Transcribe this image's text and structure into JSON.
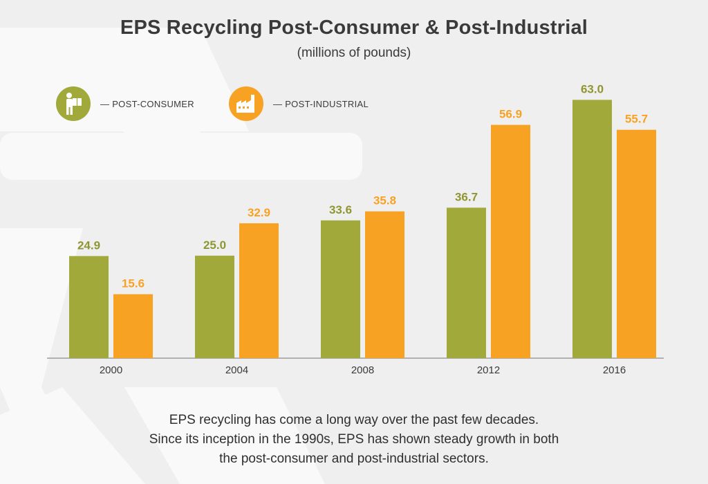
{
  "title": "EPS Recycling Post-Consumer & Post-Industrial",
  "subtitle": "(millions of pounds)",
  "legend": [
    {
      "label": "— POST-CONSUMER",
      "icon": "worker-carrying-box-icon",
      "color": "#a0a93a"
    },
    {
      "label": "— POST-INDUSTRIAL",
      "icon": "factory-icon",
      "color": "#f8a224"
    }
  ],
  "caption": [
    "EPS recycling has come a long way over the past few decades.",
    "Since its inception in the 1990s, EPS has shown steady growth in both",
    "the post-consumer and post-industrial sectors."
  ],
  "chart_data": {
    "type": "bar",
    "title": "EPS Recycling Post-Consumer & Post-Industrial",
    "subtitle": "(millions of pounds)",
    "categories": [
      "2000",
      "2004",
      "2008",
      "2012",
      "2016"
    ],
    "series": [
      {
        "name": "POST-CONSUMER",
        "color": "#a0a93a",
        "values": [
          24.9,
          25.0,
          33.6,
          36.7,
          63.0
        ]
      },
      {
        "name": "POST-INDUSTRIAL",
        "color": "#f8a224",
        "values": [
          15.6,
          32.9,
          35.8,
          56.9,
          55.7
        ]
      }
    ],
    "ylim": [
      0,
      70
    ],
    "data_labels": true,
    "grid": false,
    "legend_position": "top-left"
  }
}
